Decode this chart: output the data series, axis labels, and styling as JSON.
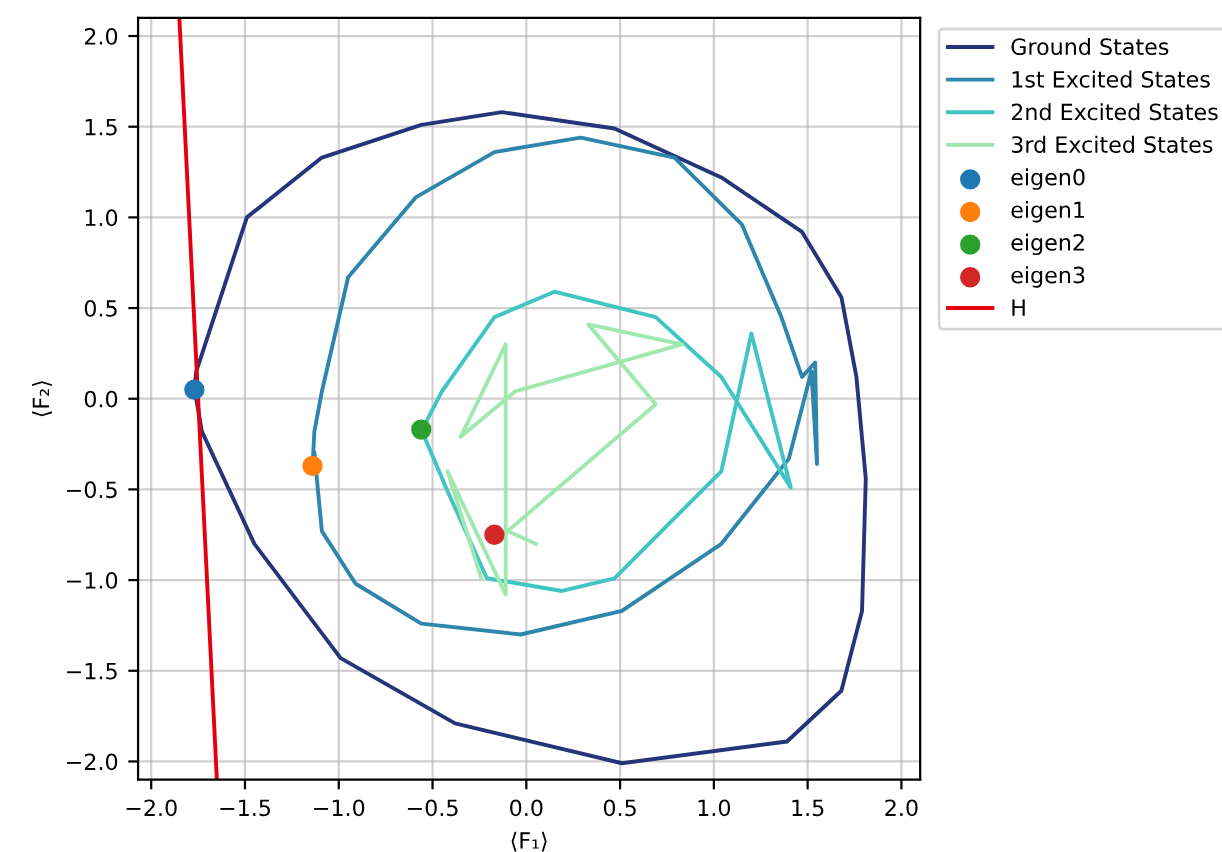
{
  "chart_data": {
    "type": "line",
    "xlabel": "⟨F₁⟩",
    "ylabel": "⟨F₂⟩",
    "xlim": [
      -2.07,
      2.1
    ],
    "ylim": [
      -2.1,
      2.1
    ],
    "xticks": [
      {
        "value": -2.0,
        "label": "−2.0"
      },
      {
        "value": -1.5,
        "label": "−1.5"
      },
      {
        "value": -1.0,
        "label": "−1.0"
      },
      {
        "value": -0.5,
        "label": "−0.5"
      },
      {
        "value": 0.0,
        "label": "0.0"
      },
      {
        "value": 0.5,
        "label": "0.5"
      },
      {
        "value": 1.0,
        "label": "1.0"
      },
      {
        "value": 1.5,
        "label": "1.5"
      },
      {
        "value": 2.0,
        "label": "2.0"
      }
    ],
    "yticks": [
      {
        "value": -2.0,
        "label": "−2.0"
      },
      {
        "value": -1.5,
        "label": "−1.5"
      },
      {
        "value": -1.0,
        "label": "−1.0"
      },
      {
        "value": -0.5,
        "label": "−0.5"
      },
      {
        "value": 0.0,
        "label": "0.0"
      },
      {
        "value": 0.5,
        "label": "0.5"
      },
      {
        "value": 1.0,
        "label": "1.0"
      },
      {
        "value": 1.5,
        "label": "1.5"
      },
      {
        "value": 2.0,
        "label": "2.0"
      }
    ],
    "grid": true,
    "legend": "right",
    "series": [
      {
        "name": "Ground States",
        "color": "#26357a",
        "x": [
          -1.77,
          -1.76,
          -1.49,
          -1.09,
          -0.56,
          -0.13,
          0.47,
          1.04,
          1.47,
          1.68,
          1.76,
          1.81,
          1.79,
          1.68,
          1.39,
          0.51,
          -0.38,
          -0.99,
          -1.45,
          -1.73,
          -1.76
        ],
        "values": [
          0.05,
          0.15,
          1.0,
          1.33,
          1.51,
          1.58,
          1.49,
          1.22,
          0.92,
          0.56,
          0.12,
          -0.44,
          -1.17,
          -1.61,
          -1.89,
          -2.01,
          -1.79,
          -1.43,
          -0.8,
          -0.18,
          0.0
        ]
      },
      {
        "name": "1st Excited States",
        "color": "#2f86ad",
        "x": [
          -1.14,
          -1.13,
          -1.09,
          -0.95,
          -0.59,
          -0.17,
          0.29,
          0.79,
          1.15,
          1.36,
          1.47,
          1.54,
          1.55,
          1.52,
          1.4,
          1.04,
          0.51,
          -0.03,
          -0.56,
          -0.91,
          -1.09,
          -1.13
        ],
        "values": [
          -0.37,
          -0.18,
          0.04,
          0.67,
          1.11,
          1.36,
          1.44,
          1.33,
          0.96,
          0.45,
          0.12,
          0.2,
          -0.36,
          0.15,
          -0.33,
          -0.8,
          -1.17,
          -1.3,
          -1.24,
          -1.02,
          -0.73,
          -0.3
        ]
      },
      {
        "name": "2nd Excited States",
        "color": "#41c4c4",
        "x": [
          -0.56,
          -0.42,
          -0.21,
          0.19,
          0.47,
          1.04,
          1.15,
          1.2,
          1.41,
          1.04,
          0.69,
          0.15,
          -0.17,
          -0.45,
          -0.53
        ],
        "values": [
          -0.17,
          -0.51,
          -0.99,
          -1.06,
          -0.99,
          -0.4,
          0.12,
          0.36,
          -0.49,
          0.12,
          0.45,
          0.59,
          0.45,
          0.04,
          -0.12
        ]
      },
      {
        "name": "3rd Excited States",
        "color": "#a0e8b0",
        "x": [
          0.05,
          -0.1,
          0.69,
          0.33,
          0.83,
          -0.06,
          -0.35,
          -0.11,
          -0.11,
          -0.42,
          -0.24
        ],
        "values": [
          -0.8,
          -0.73,
          -0.03,
          0.41,
          0.3,
          0.04,
          -0.21,
          0.3,
          -1.08,
          -0.4,
          -0.99
        ]
      },
      {
        "name": "eigen0",
        "type": "scatter",
        "marker": "circle",
        "color": "#1f77b4",
        "x": [
          -1.77
        ],
        "values": [
          0.05
        ]
      },
      {
        "name": "eigen1",
        "type": "scatter",
        "marker": "circle",
        "color": "#ff7f0e",
        "x": [
          -1.14
        ],
        "values": [
          -0.37
        ]
      },
      {
        "name": "eigen2",
        "type": "scatter",
        "marker": "circle",
        "color": "#2ca02c",
        "x": [
          -0.56
        ],
        "values": [
          -0.17
        ]
      },
      {
        "name": "eigen3",
        "type": "scatter",
        "marker": "circle",
        "color": "#d62728",
        "x": [
          -0.17
        ],
        "values": [
          -0.75
        ]
      },
      {
        "name": "H",
        "color": "#e3000f",
        "x": [
          -1.85,
          -1.65
        ],
        "values": [
          2.1,
          -2.1
        ]
      }
    ]
  }
}
